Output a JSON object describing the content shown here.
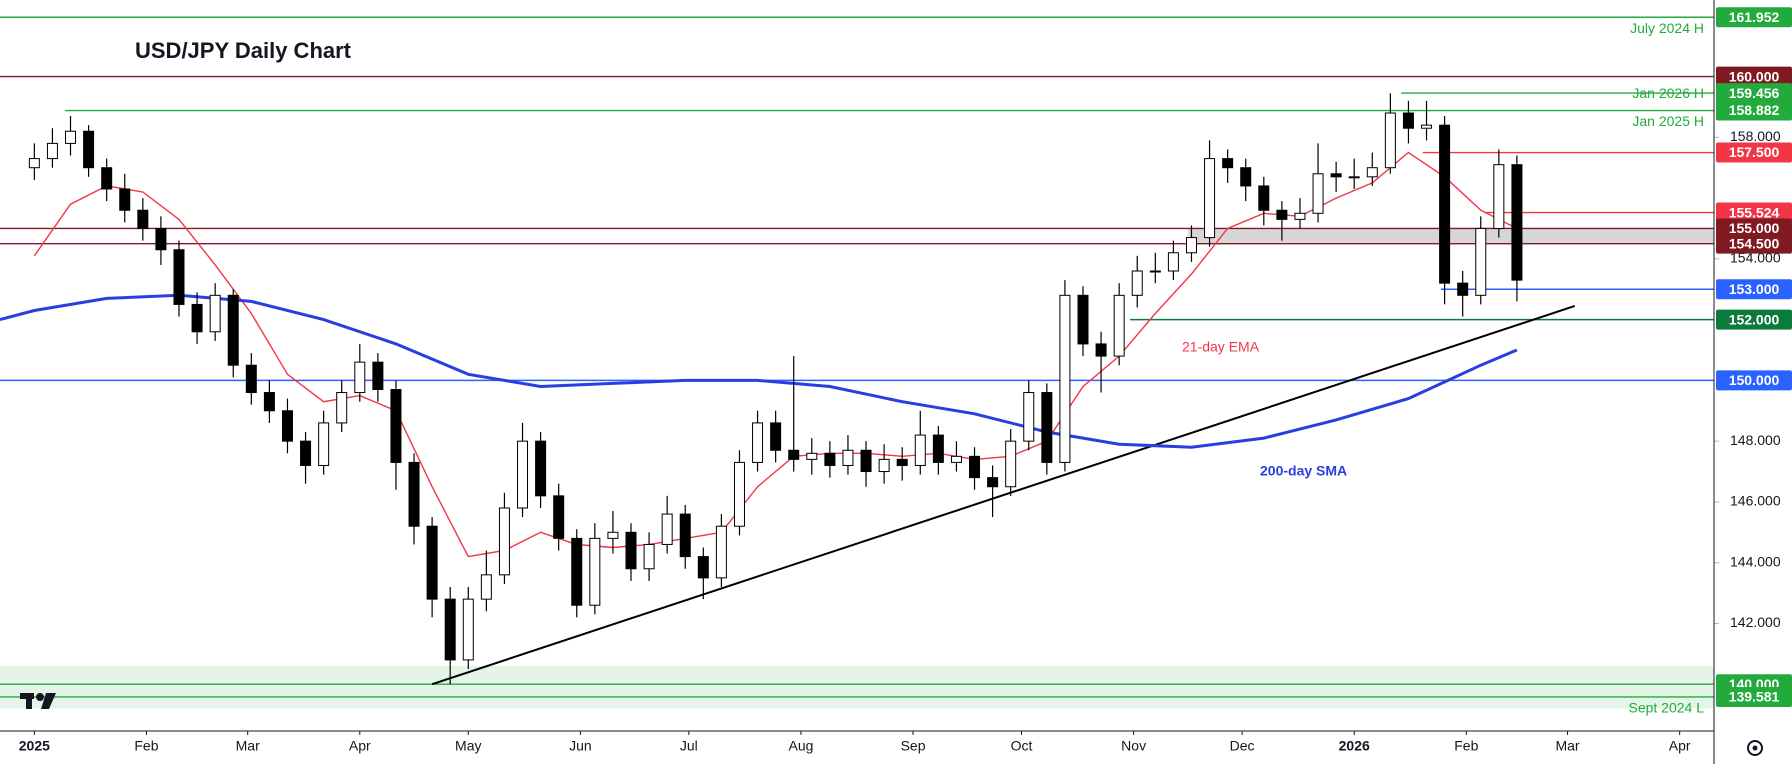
{
  "chart_data": {
    "type": "candlestick",
    "title": "USD/JPY Daily Chart",
    "xlim": [
      -9.5,
      464.5
    ],
    "ylim": [
      138.46,
      162.52
    ],
    "xticks": [
      {
        "value": 0,
        "label": "2025"
      },
      {
        "value": 31,
        "label": "Feb"
      },
      {
        "value": 59,
        "label": "Mar"
      },
      {
        "value": 90,
        "label": "Apr"
      },
      {
        "value": 120,
        "label": "May"
      },
      {
        "value": 151,
        "label": "Jun"
      },
      {
        "value": 181,
        "label": "Jul"
      },
      {
        "value": 212,
        "label": "Aug"
      },
      {
        "value": 243,
        "label": "Sep"
      },
      {
        "value": 273,
        "label": "Oct"
      },
      {
        "value": 304,
        "label": "Nov"
      },
      {
        "value": 334,
        "label": "Dec"
      },
      {
        "value": 365,
        "label": "2026"
      },
      {
        "value": 396,
        "label": "Feb"
      },
      {
        "value": 424,
        "label": "Mar"
      },
      {
        "value": 455,
        "label": "Apr"
      }
    ],
    "yticks": [
      {
        "value": 142,
        "label": "142.000"
      },
      {
        "value": 144,
        "label": "144.000"
      },
      {
        "value": 146,
        "label": "146.000"
      },
      {
        "value": 148,
        "label": "148.000"
      },
      {
        "value": 154,
        "label": "154.000"
      },
      {
        "value": 158,
        "label": "158.000"
      }
    ],
    "up_color": "#ffffff",
    "down_color": "#000000",
    "x": [
      0,
      5,
      10,
      15,
      20,
      25,
      30,
      35,
      40,
      45,
      50,
      55,
      60,
      65,
      70,
      75,
      80,
      85,
      90,
      95,
      100,
      105,
      110,
      115,
      120,
      125,
      130,
      135,
      140,
      145,
      150,
      155,
      160,
      165,
      170,
      175,
      180,
      185,
      190,
      195,
      200,
      205,
      210,
      215,
      220,
      225,
      230,
      235,
      240,
      245,
      250,
      255,
      260,
      265,
      270,
      275,
      280,
      285,
      290,
      295,
      300,
      305,
      310,
      315,
      320,
      325,
      330,
      335,
      340,
      345,
      350,
      355,
      360,
      365,
      370,
      375,
      380,
      385,
      390,
      395,
      400,
      405,
      410
    ],
    "open": [
      157.0,
      157.3,
      157.8,
      158.2,
      157.0,
      156.3,
      155.6,
      155.0,
      154.3,
      152.5,
      151.6,
      152.8,
      150.5,
      149.6,
      149.0,
      148.0,
      147.2,
      148.6,
      149.6,
      150.6,
      149.7,
      147.3,
      145.2,
      142.8,
      140.8,
      142.8,
      143.6,
      145.8,
      148.0,
      146.2,
      144.8,
      142.6,
      144.8,
      145.0,
      143.8,
      144.6,
      145.6,
      144.2,
      143.5,
      145.2,
      147.3,
      148.6,
      147.7,
      147.4,
      147.6,
      147.2,
      147.7,
      147.0,
      147.4,
      147.2,
      148.2,
      147.3,
      147.5,
      146.8,
      146.5,
      148.0,
      149.6,
      147.3,
      152.8,
      151.2,
      150.8,
      152.8,
      153.6,
      153.6,
      154.2,
      154.7,
      157.3,
      157.0,
      156.4,
      155.6,
      155.3,
      155.5,
      156.8,
      156.7,
      156.7,
      157.0,
      158.8,
      158.3,
      158.4,
      153.2,
      152.8,
      155.0,
      157.1
    ],
    "high": [
      157.8,
      158.3,
      158.7,
      158.4,
      157.3,
      156.8,
      156.0,
      155.4,
      154.6,
      152.9,
      153.2,
      153.0,
      150.9,
      150.0,
      149.4,
      148.3,
      149.0,
      150.0,
      151.2,
      150.9,
      150.0,
      147.6,
      145.5,
      143.2,
      143.2,
      144.4,
      146.3,
      148.6,
      148.3,
      146.6,
      145.1,
      145.3,
      145.7,
      145.3,
      145.0,
      146.2,
      145.9,
      144.5,
      145.6,
      147.7,
      149.0,
      149.0,
      150.8,
      148.1,
      148.0,
      148.2,
      148.0,
      147.9,
      147.8,
      149.0,
      148.5,
      148.0,
      147.8,
      147.2,
      148.4,
      150.0,
      149.9,
      153.3,
      153.1,
      151.6,
      153.2,
      154.1,
      154.2,
      154.6,
      155.1,
      157.9,
      157.6,
      157.3,
      156.7,
      155.9,
      156.0,
      157.8,
      157.2,
      157.3,
      157.5,
      159.45,
      159.2,
      159.2,
      158.7,
      153.6,
      155.4,
      157.6,
      157.4
    ],
    "low": [
      156.6,
      157.0,
      157.4,
      156.7,
      155.9,
      155.2,
      154.6,
      153.8,
      152.1,
      151.2,
      151.3,
      150.1,
      149.2,
      148.6,
      147.6,
      146.6,
      146.9,
      148.3,
      149.3,
      149.3,
      146.4,
      144.6,
      142.2,
      140.0,
      140.5,
      142.4,
      143.3,
      145.5,
      145.8,
      144.4,
      142.2,
      142.3,
      144.3,
      143.4,
      143.4,
      144.3,
      143.8,
      142.8,
      143.2,
      144.9,
      147.0,
      147.3,
      147.0,
      146.9,
      146.8,
      146.9,
      146.5,
      146.6,
      146.7,
      146.9,
      146.9,
      147.0,
      146.4,
      145.5,
      146.2,
      147.7,
      146.9,
      147.0,
      150.8,
      149.6,
      150.5,
      152.4,
      153.2,
      153.3,
      153.9,
      154.4,
      156.5,
      155.9,
      155.1,
      154.6,
      155.0,
      155.2,
      156.2,
      156.3,
      156.4,
      156.8,
      157.8,
      157.9,
      152.5,
      152.1,
      152.5,
      154.7,
      152.6
    ],
    "close": [
      157.3,
      157.8,
      158.2,
      157.0,
      156.3,
      155.6,
      155.0,
      154.3,
      152.5,
      151.6,
      152.8,
      150.5,
      149.6,
      149.0,
      148.0,
      147.2,
      148.6,
      149.6,
      150.6,
      149.7,
      147.3,
      145.2,
      142.8,
      140.8,
      142.8,
      143.6,
      145.8,
      148.0,
      146.2,
      144.8,
      142.6,
      144.8,
      145.0,
      143.8,
      144.6,
      145.6,
      144.2,
      143.5,
      145.2,
      147.3,
      148.6,
      147.7,
      147.4,
      147.6,
      147.2,
      147.7,
      147.0,
      147.4,
      147.2,
      148.2,
      147.3,
      147.5,
      146.8,
      146.5,
      148.0,
      149.6,
      147.3,
      152.8,
      151.2,
      150.8,
      152.8,
      153.6,
      153.6,
      154.2,
      154.7,
      157.3,
      157.0,
      156.4,
      155.6,
      155.3,
      155.5,
      156.8,
      156.7,
      156.7,
      157.0,
      158.8,
      158.3,
      158.4,
      153.2,
      152.8,
      155.0,
      157.1,
      153.3
    ],
    "lines": [
      {
        "name": "21-day EMA",
        "color": "#f23645",
        "x": [
          0,
          10,
          20,
          30,
          40,
          50,
          60,
          70,
          80,
          90,
          100,
          110,
          120,
          130,
          140,
          150,
          160,
          170,
          180,
          190,
          200,
          210,
          220,
          230,
          240,
          250,
          260,
          270,
          280,
          290,
          300,
          310,
          320,
          330,
          340,
          350,
          360,
          370,
          380,
          390,
          400,
          410
        ],
        "values": [
          154.1,
          155.8,
          156.4,
          156.2,
          155.3,
          153.8,
          152.2,
          150.2,
          149.3,
          149.5,
          149.0,
          146.5,
          144.2,
          144.4,
          145.0,
          144.6,
          144.5,
          144.6,
          144.8,
          145.0,
          146.5,
          147.5,
          147.6,
          147.6,
          147.5,
          147.6,
          147.4,
          147.5,
          148.0,
          149.8,
          150.8,
          152.2,
          153.5,
          155.0,
          155.5,
          155.4,
          156.0,
          156.5,
          157.5,
          156.7,
          155.6,
          155.0
        ]
      },
      {
        "name": "200-day SMA",
        "color": "#2a3ee0",
        "x": [
          -9.5,
          0,
          20,
          40,
          60,
          80,
          100,
          120,
          140,
          160,
          180,
          200,
          220,
          240,
          260,
          280,
          300,
          320,
          340,
          360,
          380,
          400,
          410
        ],
        "values": [
          152.0,
          152.3,
          152.7,
          152.8,
          152.6,
          152.0,
          151.2,
          150.2,
          149.8,
          149.9,
          150.0,
          150.0,
          149.8,
          149.3,
          148.9,
          148.3,
          147.9,
          147.8,
          148.1,
          148.7,
          149.4,
          150.5,
          151.0
        ]
      }
    ],
    "trendline": {
      "color": "#000000",
      "x": [
        110,
        426
      ],
      "values": [
        140.0,
        152.45
      ]
    },
    "zones": [
      {
        "from": 154.5,
        "to": 155.0,
        "start": 319,
        "color": "#d6d6d6"
      },
      {
        "from": 139.2,
        "to": 140.6,
        "color": "#e4f5e8"
      }
    ],
    "levels": [
      {
        "value": 161.952,
        "label": "161.952",
        "color": "#22ab3c",
        "note": "July 2024 H"
      },
      {
        "value": 160.0,
        "label": "160.000",
        "color": "#801922"
      },
      {
        "value": 159.456,
        "label": "159.456",
        "color": "#22ab3c",
        "note": "Jan 2026 H",
        "start": 378
      },
      {
        "value": 158.882,
        "label": "158.882",
        "color": "#22ab3c",
        "note": "Jan 2025 H",
        "start": 8.5
      },
      {
        "value": 157.5,
        "label": "157.500",
        "color": "#f23645",
        "start": 384
      },
      {
        "value": 155.524,
        "label": "155.524",
        "color": "#f23645",
        "start": 401
      },
      {
        "value": 155.0,
        "label": "155.000",
        "color": "#801922"
      },
      {
        "value": 154.5,
        "label": "154.500",
        "color": "#801922"
      },
      {
        "value": 153.0,
        "label": "153.000",
        "color": "#2962ff",
        "start": 389
      },
      {
        "value": 152.0,
        "label": "152.000",
        "color": "#0b7a3b",
        "start": 303
      },
      {
        "value": 150.0,
        "label": "150.000",
        "color": "#2962ff"
      },
      {
        "value": 140.0,
        "label": "140.000",
        "color": "#22ab3c"
      },
      {
        "value": 139.581,
        "label": "139.581",
        "color": "#22ab3c",
        "note": "Sept 2024 L"
      }
    ]
  }
}
